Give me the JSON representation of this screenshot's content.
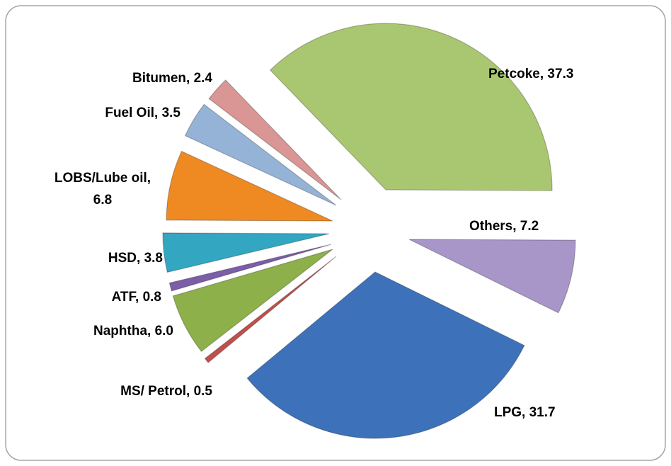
{
  "chart_data": {
    "type": "pie",
    "categories": [
      "Petcoke",
      "Others",
      "LPG",
      "MS/ Petrol",
      "Naphtha",
      "ATF",
      "HSD",
      "LOBS/Lube oil",
      "Fuel Oil",
      "Bitumen"
    ],
    "values": [
      37.3,
      7.2,
      31.7,
      0.5,
      6.0,
      0.8,
      3.8,
      6.8,
      3.5,
      2.4
    ],
    "value_labels": [
      "Petcoke, 37.3",
      "Others, 7.2",
      "LPG, 31.7",
      "MS/ Petrol, 0.5",
      "Naphtha, 6.0",
      "ATF, 0.8",
      "HSD, 3.8",
      "LOBS/Lube oil, 6.8",
      "Fuel Oil, 3.5",
      "Bitumen, 2.4"
    ],
    "colors": [
      "#a9c770",
      "#a996c8",
      "#3d72bb",
      "#c0504d",
      "#8db04a",
      "#7b5ea7",
      "#33a6c2",
      "#ef8a23",
      "#95b3d7",
      "#d99694"
    ]
  }
}
